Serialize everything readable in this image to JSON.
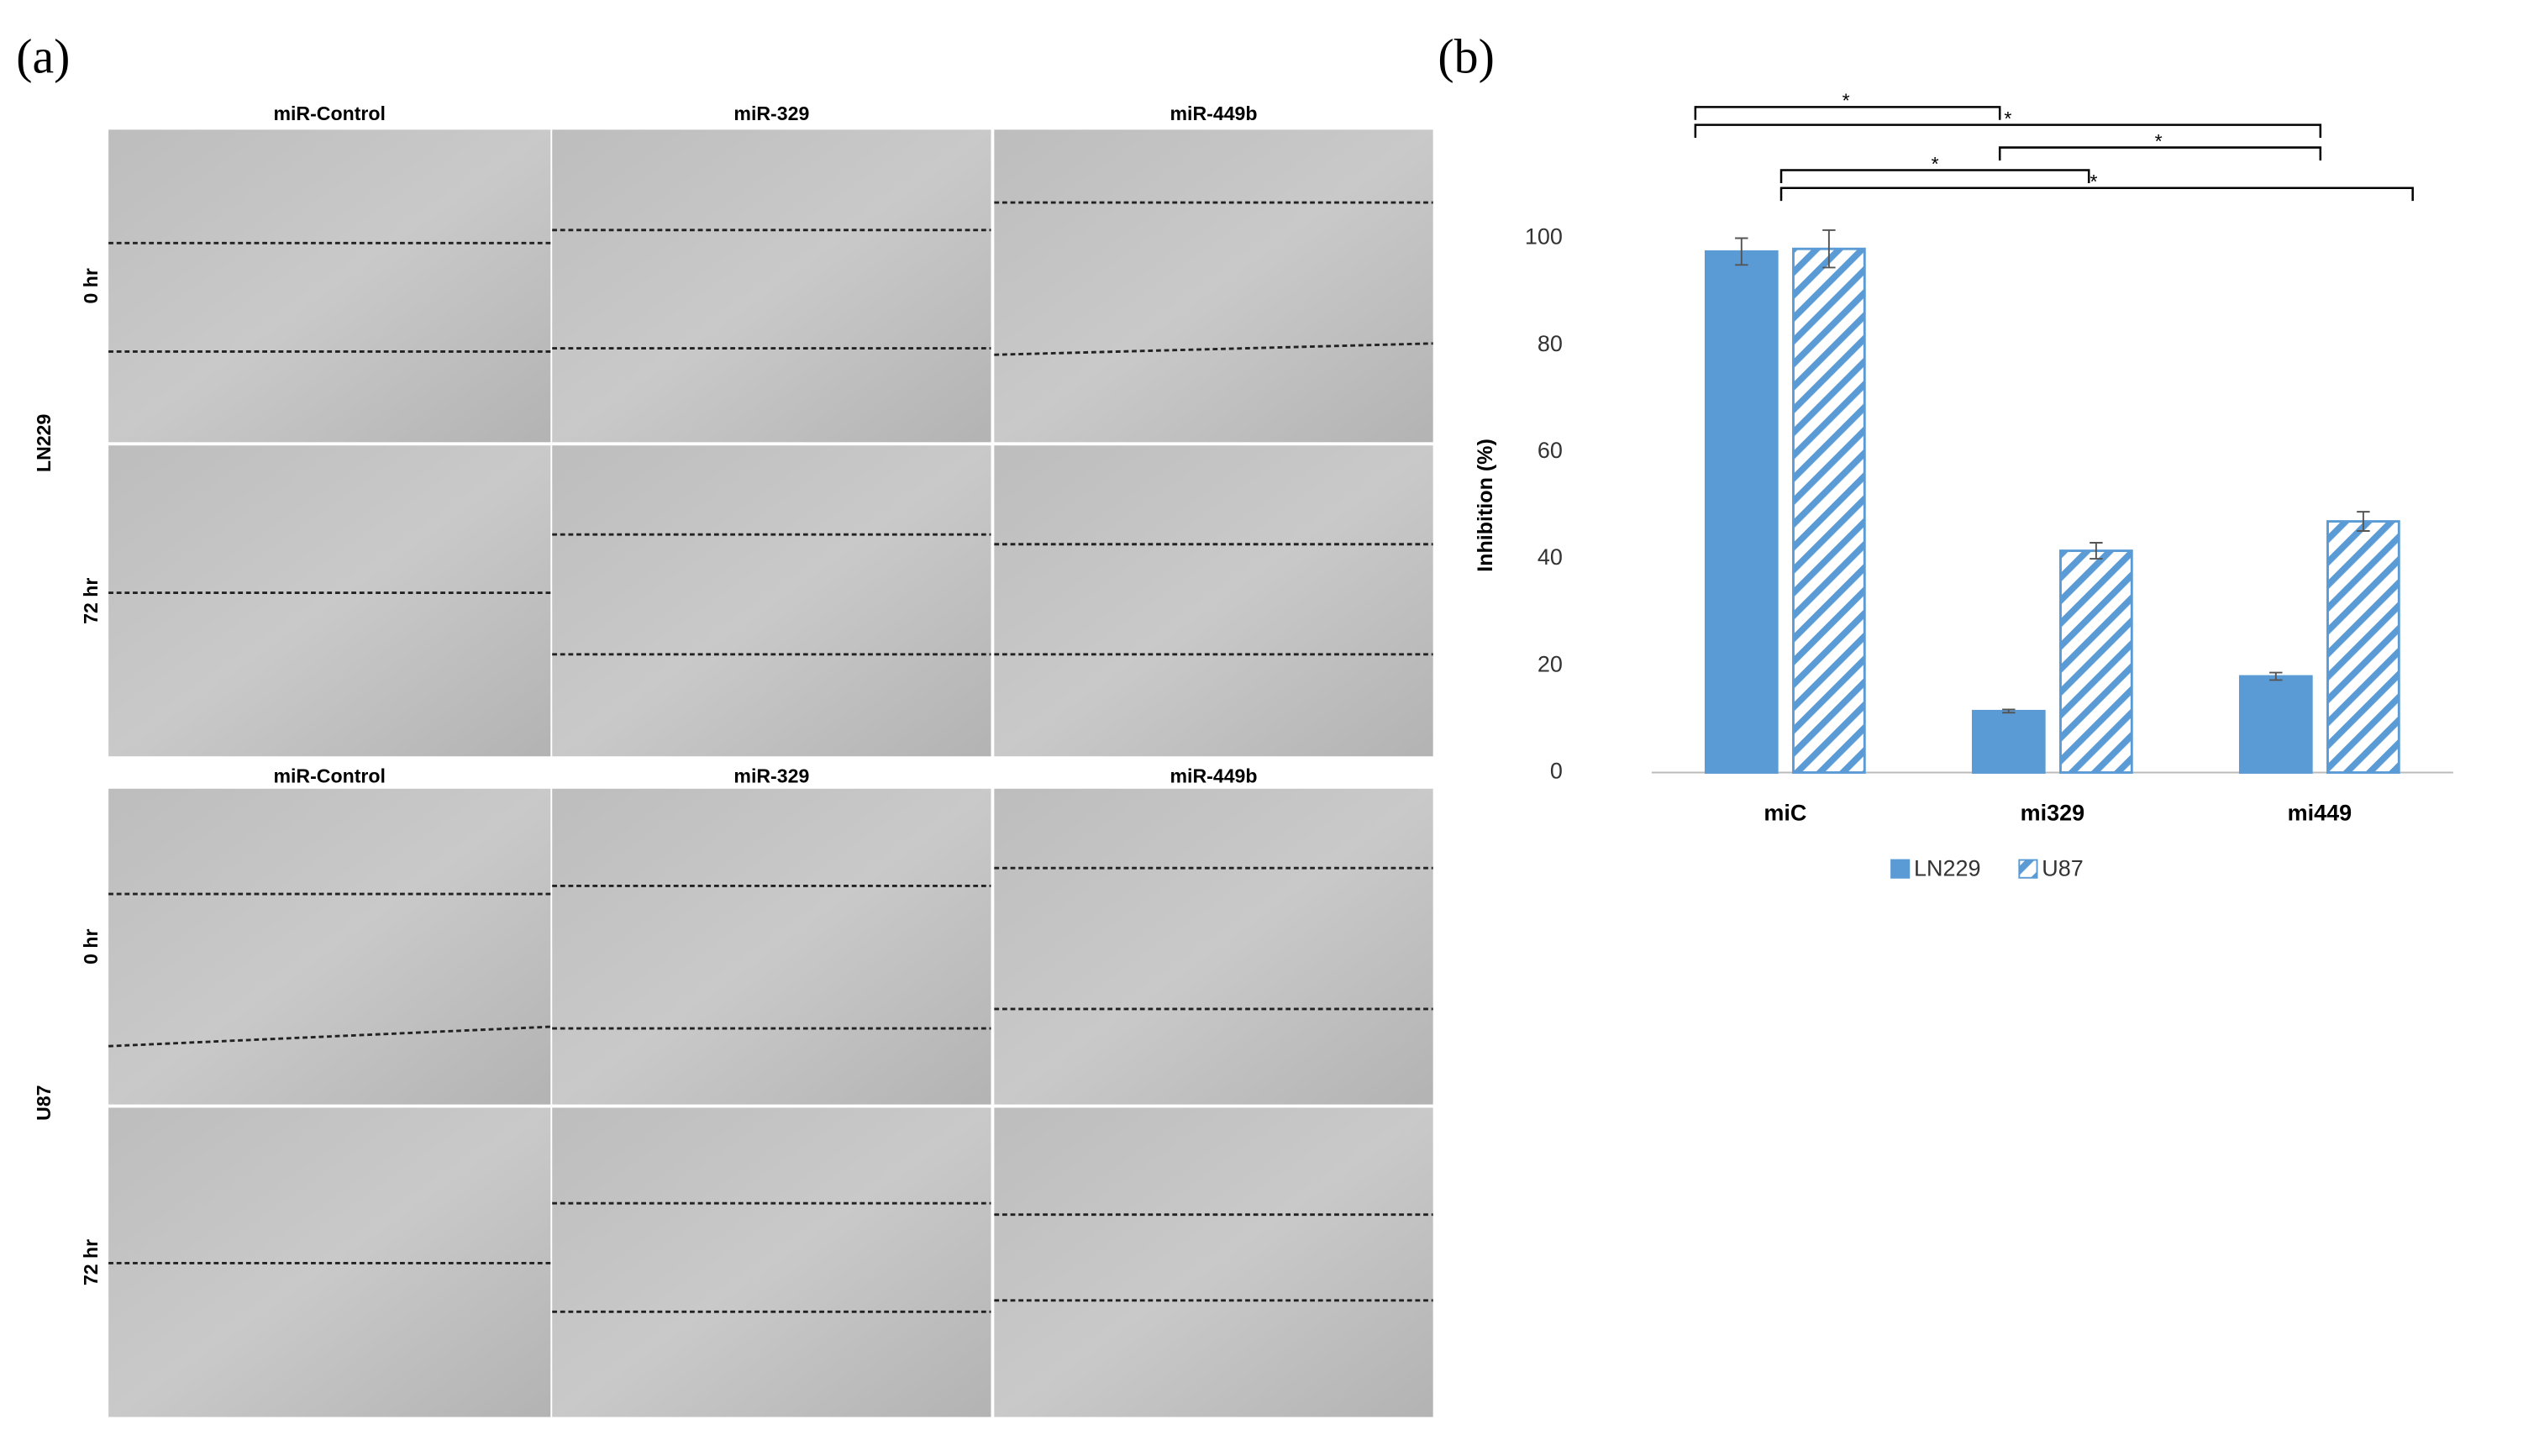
{
  "panel_a": {
    "label": "(a)",
    "blocks": [
      {
        "name": "LN229",
        "columns": [
          "miR-Control",
          "miR-329",
          "miR-449b"
        ],
        "rows": [
          "0 hr",
          "72 hr"
        ]
      },
      {
        "name": "U87",
        "columns": [
          "miR-Control",
          "miR-329",
          "miR-449b"
        ],
        "rows": [
          "0 hr",
          "72 hr"
        ]
      }
    ]
  },
  "panel_b_label": "(b)",
  "chart_data": {
    "type": "bar",
    "y_label": "Inhibition (%)",
    "categories": [
      "miC",
      "mi329",
      "mi449"
    ],
    "series": [
      {
        "name": "LN229",
        "color": "#5b9bd5",
        "values": [
          97.5,
          11.5,
          18
        ],
        "errors": [
          2.5,
          0.3,
          0.7
        ]
      },
      {
        "name": "U87",
        "color": "#5b9bd5",
        "pattern": "hatch",
        "values": [
          98,
          41.5,
          47
        ],
        "errors": [
          3.5,
          1.5,
          1.8
        ]
      }
    ],
    "ylim": [
      0,
      100
    ],
    "yticks": [
      0,
      20,
      40,
      60,
      80,
      100
    ],
    "grid": false,
    "legend": "bottom",
    "significance_labels": [
      "*",
      "*",
      "*",
      "*",
      "*"
    ]
  }
}
